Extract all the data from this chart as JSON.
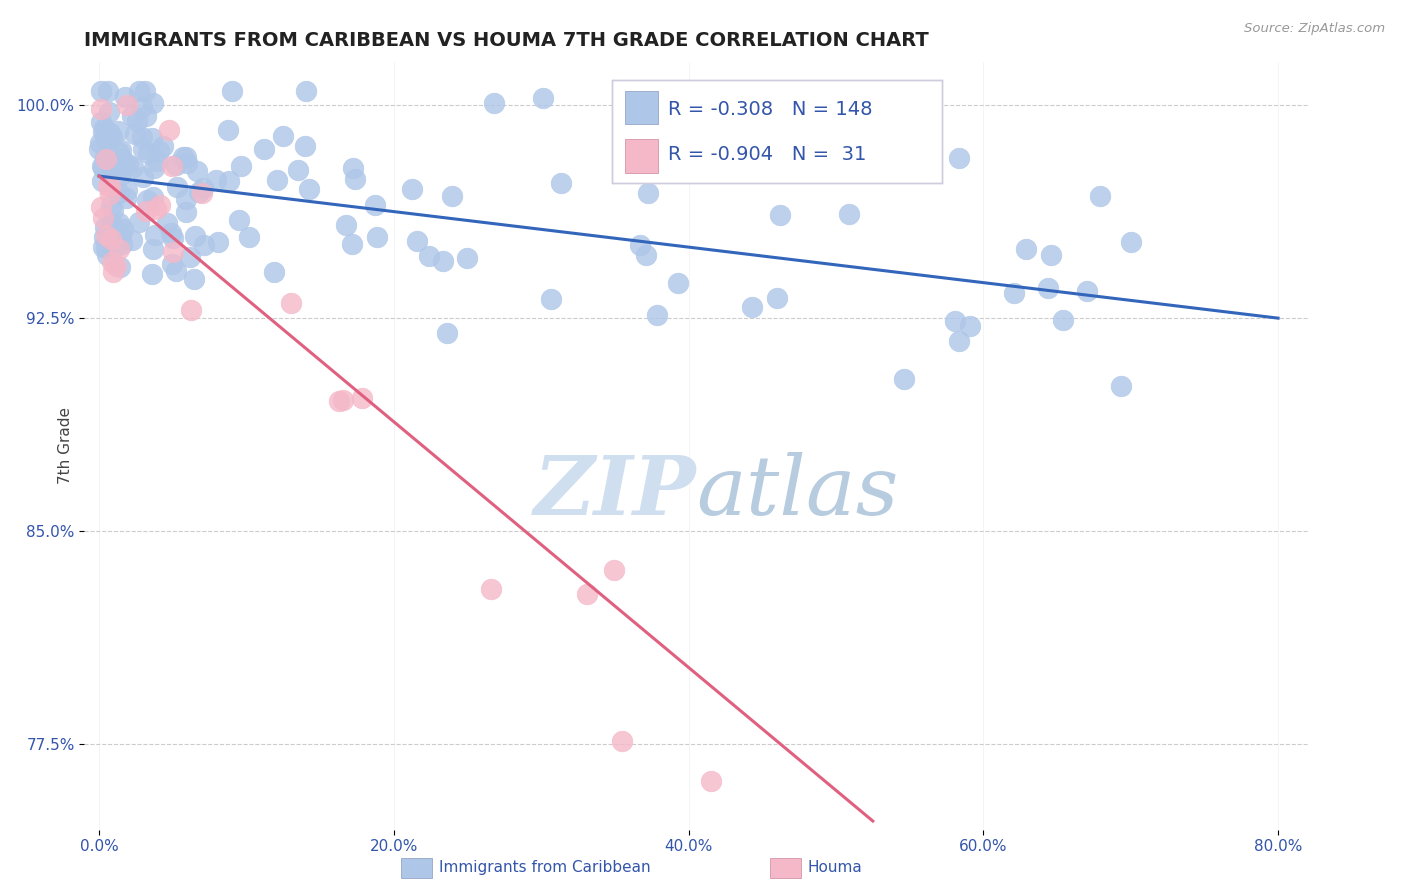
{
  "title": "IMMIGRANTS FROM CARIBBEAN VS HOUMA 7TH GRADE CORRELATION CHART",
  "source_text": "Source: ZipAtlas.com",
  "ylabel": "7th Grade",
  "xlim": [
    -0.01,
    0.82
  ],
  "ylim": [
    0.745,
    1.015
  ],
  "xtick_labels": [
    "0.0%",
    "20.0%",
    "40.0%",
    "60.0%",
    "80.0%"
  ],
  "xtick_values": [
    0.0,
    0.2,
    0.4,
    0.6,
    0.8
  ],
  "ytick_labels": [
    "77.5%",
    "85.0%",
    "92.5%",
    "100.0%"
  ],
  "ytick_values": [
    0.775,
    0.85,
    0.925,
    1.0
  ],
  "blue_R": -0.308,
  "blue_N": 148,
  "pink_R": -0.904,
  "pink_N": 31,
  "blue_color": "#aec6e8",
  "blue_edge_color": "#aec6e8",
  "blue_line_color": "#3366bb",
  "pink_color": "#f4b8c8",
  "pink_edge_color": "#f4b8c8",
  "pink_line_color": "#e06080",
  "background_color": "#ffffff",
  "grid_color": "#cccccc",
  "title_color": "#222222",
  "axis_label_color": "#3355aa",
  "tick_label_color": "#3355aa",
  "watermark_color": "#d0dff0",
  "blue_line_x": [
    0.0,
    0.8
  ],
  "blue_line_y": [
    0.975,
    0.925
  ],
  "pink_line_x": [
    0.0,
    0.525
  ],
  "pink_line_y": [
    0.975,
    0.748
  ]
}
